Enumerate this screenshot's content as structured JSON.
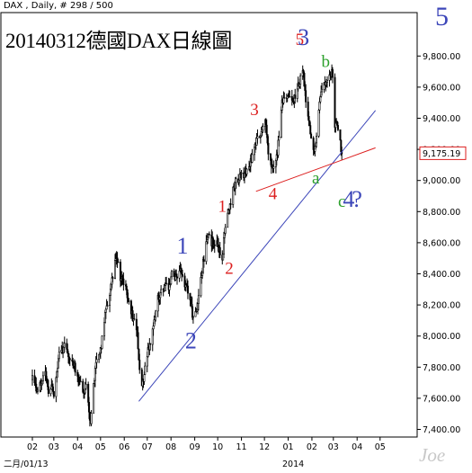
{
  "header": {
    "instrument_line": "DAX , Daily, # 298 / 500",
    "title": "20140312德國DAX日線圖",
    "corner_label": "5",
    "watermark": "Joe"
  },
  "chart_data": {
    "type": "candlestick",
    "title": "20140312德國DAX日線圖",
    "xlabel": "",
    "ylabel": "",
    "ylim": [
      7380,
      10030
    ],
    "y_ticks": [
      7400,
      7600,
      7800,
      8000,
      8200,
      8400,
      8600,
      8800,
      9000,
      9200,
      9400,
      9600,
      9800
    ],
    "y_tick_labels": [
      "7,400.00",
      "7,600.00",
      "7,800.00",
      "8,000.00",
      "8,200.00",
      "8,400.00",
      "8,600.00",
      "8,800.00",
      "9,000.00",
      "9,200.00",
      "9,400.00",
      "9,600.00",
      "9,800.00"
    ],
    "x_tick_labels": [
      "02",
      "03",
      "04",
      "05",
      "06",
      "07",
      "08",
      "09",
      "10",
      "11",
      "12",
      "01",
      "02",
      "03",
      "04",
      "05"
    ],
    "x_sub_labels": [
      "二月/01/13",
      "2014"
    ],
    "last_price": 9175.19,
    "last_price_label": "9,175.19",
    "grid": false,
    "series_color": "#000000",
    "close_path": [
      [
        "2013-02-01",
        7720
      ],
      [
        "2013-02-06",
        7650
      ],
      [
        "2013-02-12",
        7700
      ],
      [
        "2013-02-18",
        7750
      ],
      [
        "2013-02-22",
        7660
      ],
      [
        "2013-02-27",
        7690
      ],
      [
        "2013-03-01",
        7620
      ],
      [
        "2013-03-05",
        7760
      ],
      [
        "2013-03-08",
        7880
      ],
      [
        "2013-03-13",
        7900
      ],
      [
        "2013-03-15",
        7960
      ],
      [
        "2013-03-20",
        7880
      ],
      [
        "2013-03-25",
        7830
      ],
      [
        "2013-03-28",
        7800
      ],
      [
        "2013-04-03",
        7730
      ],
      [
        "2013-04-08",
        7620
      ],
      [
        "2013-04-12",
        7680
      ],
      [
        "2013-04-18",
        7450
      ],
      [
        "2013-04-22",
        7700
      ],
      [
        "2013-04-26",
        7860
      ],
      [
        "2013-05-02",
        7940
      ],
      [
        "2013-05-08",
        8200
      ],
      [
        "2013-05-13",
        8260
      ],
      [
        "2013-05-17",
        8400
      ],
      [
        "2013-05-22",
        8520
      ],
      [
        "2013-05-27",
        8380
      ],
      [
        "2013-06-03",
        8320
      ],
      [
        "2013-06-07",
        8200
      ],
      [
        "2013-06-12",
        8120
      ],
      [
        "2013-06-18",
        8000
      ],
      [
        "2013-06-21",
        7770
      ],
      [
        "2013-06-25",
        7690
      ],
      [
        "2013-07-01",
        7880
      ],
      [
        "2013-07-05",
        7960
      ],
      [
        "2013-07-10",
        8120
      ],
      [
        "2013-07-15",
        8250
      ],
      [
        "2013-07-22",
        8300
      ],
      [
        "2013-07-29",
        8320
      ],
      [
        "2013-08-02",
        8400
      ],
      [
        "2013-08-08",
        8380
      ],
      [
        "2013-08-14",
        8430
      ],
      [
        "2013-08-20",
        8320
      ],
      [
        "2013-08-26",
        8260
      ],
      [
        "2013-08-30",
        8110
      ],
      [
        "2013-09-04",
        8200
      ],
      [
        "2013-09-10",
        8400
      ],
      [
        "2013-09-18",
        8650
      ],
      [
        "2013-09-24",
        8600
      ],
      [
        "2013-10-01",
        8590
      ],
      [
        "2013-10-07",
        8500
      ],
      [
        "2013-10-11",
        8720
      ],
      [
        "2013-10-18",
        8870
      ],
      [
        "2013-10-25",
        9010
      ],
      [
        "2013-10-31",
        9020
      ],
      [
        "2013-11-07",
        9060
      ],
      [
        "2013-11-13",
        9120
      ],
      [
        "2013-11-19",
        9230
      ],
      [
        "2013-11-25",
        9290
      ],
      [
        "2013-12-02",
        9400
      ],
      [
        "2013-12-06",
        9170
      ],
      [
        "2013-12-12",
        9050
      ],
      [
        "2013-12-18",
        9180
      ],
      [
        "2013-12-24",
        9490
      ],
      [
        "2013-12-31",
        9550
      ],
      [
        "2014-01-07",
        9500
      ],
      [
        "2014-01-14",
        9600
      ],
      [
        "2014-01-20",
        9720
      ],
      [
        "2014-01-23",
        9550
      ],
      [
        "2014-01-27",
        9390
      ],
      [
        "2014-02-03",
        9180
      ],
      [
        "2014-02-07",
        9300
      ],
      [
        "2014-02-12",
        9550
      ],
      [
        "2014-02-18",
        9640
      ],
      [
        "2014-02-24",
        9700
      ],
      [
        "2014-02-28",
        9690
      ],
      [
        "2014-03-03",
        9360
      ],
      [
        "2014-03-07",
        9350
      ],
      [
        "2014-03-12",
        9175.19
      ]
    ],
    "wave_labels": [
      {
        "text": "1",
        "date": "2013-08-16",
        "price": 8530,
        "color": "#3c46b9",
        "size": "large"
      },
      {
        "text": "2",
        "date": "2013-08-27",
        "price": 7920,
        "color": "#3c46b9",
        "size": "large"
      },
      {
        "text": "1",
        "date": "2013-10-07",
        "price": 8800,
        "color": "#dc1e1e",
        "size": "small"
      },
      {
        "text": "2",
        "date": "2013-10-16",
        "price": 8400,
        "color": "#dc1e1e",
        "size": "small"
      },
      {
        "text": "3",
        "date": "2013-11-18",
        "price": 9420,
        "color": "#dc1e1e",
        "size": "small"
      },
      {
        "text": "4",
        "date": "2013-12-12",
        "price": 8880,
        "color": "#dc1e1e",
        "size": "small"
      },
      {
        "text": "5",
        "date": "2014-01-16",
        "price": 9870,
        "color": "#dc1e1e",
        "size": "small"
      },
      {
        "text": "3",
        "date": "2014-01-21",
        "price": 9870,
        "color": "#3c46b9",
        "size": "large"
      },
      {
        "text": "a",
        "date": "2014-02-06",
        "price": 8980,
        "color": "#2ca02c",
        "size": "small"
      },
      {
        "text": "b",
        "date": "2014-02-19",
        "price": 9730,
        "color": "#2ca02c",
        "size": "small"
      },
      {
        "text": "c",
        "date": "2014-03-12",
        "price": 8830,
        "color": "#2ca02c",
        "size": "small"
      },
      {
        "text": "4",
        "date": "2014-03-21",
        "price": 8830,
        "color": "#3c46b9",
        "size": "large"
      },
      {
        "text": "?",
        "date": "2014-04-01",
        "price": 8830,
        "color": "#3c46b9",
        "size": "large"
      }
    ],
    "trendlines": [
      {
        "name": "blue-uptrend",
        "color": "#3c46b9",
        "from": [
          "2013-06-20",
          7580
        ],
        "to": [
          "2014-04-25",
          9450
        ]
      },
      {
        "name": "red-trendline",
        "color": "#dc1e1e",
        "from": [
          "2013-11-20",
          8930
        ],
        "to": [
          "2014-04-25",
          9210
        ]
      }
    ]
  }
}
